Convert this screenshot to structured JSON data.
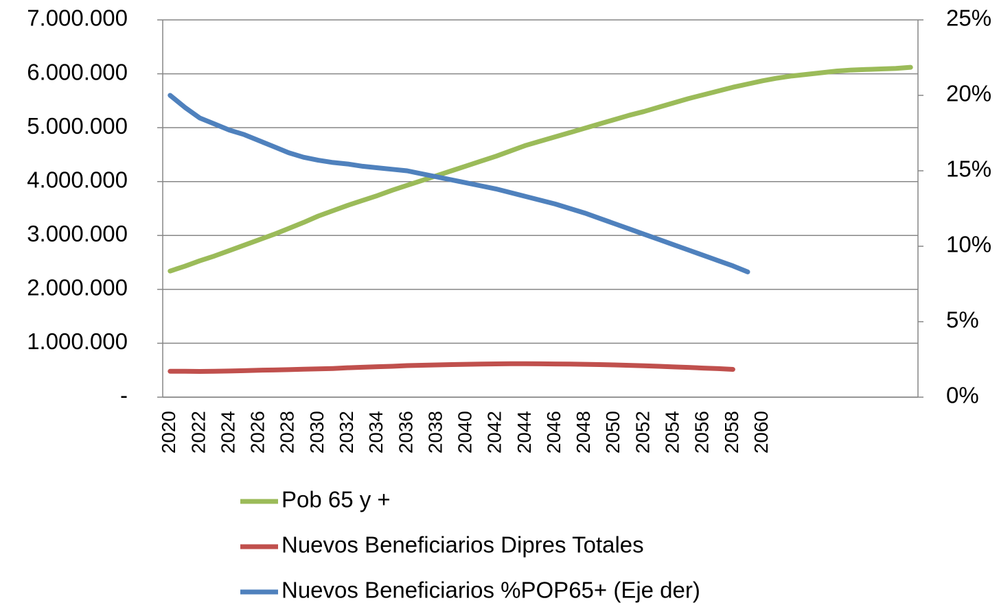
{
  "chart_data": {
    "type": "line",
    "categories": [
      "2020",
      null,
      "2022",
      null,
      "2024",
      null,
      "2026",
      null,
      "2028",
      null,
      "2030",
      null,
      "2032",
      null,
      "2034",
      null,
      "2036",
      null,
      "2038",
      null,
      "2040",
      null,
      "2042",
      null,
      "2044",
      null,
      "2046",
      null,
      "2048",
      null,
      "2050",
      null,
      "2052",
      null,
      "2054",
      null,
      "2056",
      null,
      "2058",
      null,
      "2060",
      null,
      null,
      null,
      null,
      null,
      null,
      null,
      null,
      null,
      null
    ],
    "series": [
      {
        "name": "Pob 65 y +",
        "color": "#9bbb59",
        "values": [
          2340000,
          2430000,
          2530000,
          2620000,
          2720000,
          2820000,
          2920000,
          3020000,
          3130000,
          3240000,
          3360000,
          3460000,
          3560000,
          3650000,
          3740000,
          3840000,
          3930000,
          4020000,
          4110000,
          4200000,
          4290000,
          4380000,
          4470000,
          4570000,
          4670000,
          4750000,
          4830000,
          4910000,
          4990000,
          5070000,
          5150000,
          5230000,
          5300000,
          5380000,
          5460000,
          5540000,
          5610000,
          5680000,
          5750000,
          5810000,
          5870000,
          5920000,
          5960000,
          5990000,
          6020000,
          6050000,
          6070000,
          6080000,
          6090000,
          6100000,
          6120000
        ]
      },
      {
        "name": "Nuevos Beneficiarios Dipres Totales",
        "color": "#c0504d",
        "values": [
          480000,
          480000,
          478000,
          480000,
          485000,
          492000,
          500000,
          505000,
          510000,
          518000,
          525000,
          532000,
          545000,
          555000,
          565000,
          572000,
          585000,
          592000,
          598000,
          604000,
          610000,
          614000,
          618000,
          620000,
          620000,
          619000,
          616000,
          614000,
          610000,
          604000,
          598000,
          590000,
          582000,
          572000,
          562000,
          552000,
          540000,
          530000,
          515000,
          null,
          null,
          null,
          null,
          null,
          null,
          null,
          null,
          null,
          null,
          null,
          null
        ]
      },
      {
        "name": "Nuevos Beneficiarios %POP65+ (Eje der)",
        "color": "#4f81bd",
        "axis": "y2",
        "values": [
          20.0,
          19.2,
          18.5,
          18.1,
          17.7,
          17.4,
          17.0,
          16.6,
          16.2,
          15.9,
          15.7,
          15.55,
          15.45,
          15.3,
          15.2,
          15.1,
          15.0,
          14.8,
          14.6,
          14.4,
          14.2,
          14.0,
          13.8,
          13.55,
          13.3,
          13.05,
          12.8,
          12.5,
          12.2,
          11.85,
          11.5,
          11.15,
          10.8,
          10.45,
          10.1,
          9.75,
          9.4,
          9.05,
          8.7,
          8.3,
          null,
          null,
          null,
          null,
          null,
          null,
          null,
          null,
          null,
          null,
          null
        ]
      }
    ],
    "ylim": [
      0,
      7000000
    ],
    "yticks": [
      {
        "value": 0,
        "label": "-"
      },
      {
        "value": 1000000,
        "label": "1.000.000"
      },
      {
        "value": 2000000,
        "label": "2.000.000"
      },
      {
        "value": 3000000,
        "label": "3.000.000"
      },
      {
        "value": 4000000,
        "label": "4.000.000"
      },
      {
        "value": 5000000,
        "label": "5.000.000"
      },
      {
        "value": 6000000,
        "label": "6.000.000"
      },
      {
        "value": 7000000,
        "label": "7.000.000"
      }
    ],
    "y2lim": [
      0,
      25
    ],
    "y2ticks": [
      {
        "value": 0,
        "label": "0%"
      },
      {
        "value": 5,
        "label": "5%"
      },
      {
        "value": 10,
        "label": "10%"
      },
      {
        "value": 15,
        "label": "15%"
      },
      {
        "value": 20,
        "label": "20%"
      },
      {
        "value": 25,
        "label": "25%"
      }
    ],
    "grid": true,
    "legend": "bottom"
  }
}
